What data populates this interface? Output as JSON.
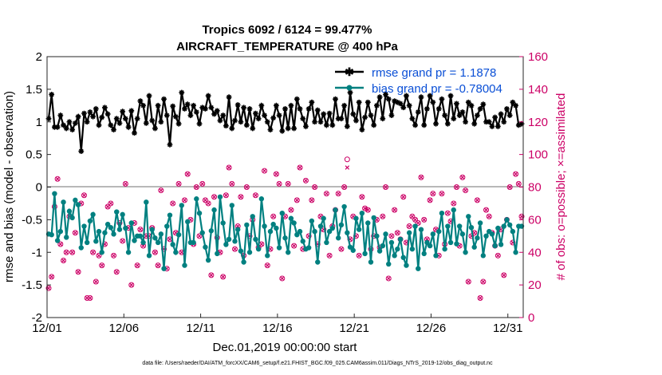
{
  "chart_data": {
    "type": "line",
    "title_line1": "Tropics 6092 / 6124 = 99.477%",
    "title_line2": "AIRCRAFT_TEMPERATURE @ 400 hPa",
    "xlabel": "Dec.01,2019 00:00:00 start",
    "ylabel_left": "rmse and bias (model - observation)",
    "ylabel_right": "# of obs: o=possible; ×=assimilated",
    "ylim_left": [
      -2,
      2
    ],
    "ylim_right": [
      0,
      160
    ],
    "yticks_left": [
      "-2",
      "-1.5",
      "-1",
      "-0.5",
      "0",
      "0.5",
      "1",
      "1.5",
      "2"
    ],
    "yticks_right": [
      "0",
      "20",
      "40",
      "60",
      "80",
      "100",
      "120",
      "140",
      "160"
    ],
    "xticks": [
      {
        "label": "12/01",
        "day": 0
      },
      {
        "label": "12/06",
        "day": 5
      },
      {
        "label": "12/11",
        "day": 10
      },
      {
        "label": "12/16",
        "day": 15
      },
      {
        "label": "12/21",
        "day": 20
      },
      {
        "label": "12/26",
        "day": 25
      },
      {
        "label": "12/31",
        "day": 30
      }
    ],
    "xlim_days": [
      0,
      31
    ],
    "footnote": "data file: /Users/raeder/DAI/ATM_forcXX/CAM6_setup/f.e21.FHIST_BGC.f09_025.CAM6assim.011/Diags_NTrS_2019-12/obs_diag_output.nc",
    "series": [
      {
        "name": "rmse",
        "legend": "rmse grand pr = 1.1878",
        "color": "#000000",
        "marker": "star",
        "values": [
          1.05,
          1.42,
          0.92,
          0.92,
          1.1,
          0.95,
          0.9,
          1.0,
          0.88,
          0.98,
          1.08,
          0.55,
          1.13,
          1.0,
          1.15,
          1.08,
          1.2,
          0.95,
          1.07,
          1.22,
          1.12,
          0.95,
          0.88,
          1.05,
          0.98,
          1.16,
          1.05,
          0.92,
          1.17,
          0.83,
          1.05,
          1.32,
          1.25,
          0.98,
          1.4,
          1.02,
          0.9,
          1.25,
          1.0,
          1.35,
          1.1,
          0.65,
          1.24,
          1.08,
          0.97,
          1.45,
          1.2,
          1.27,
          1.1,
          1.25,
          1.15,
          0.97,
          1.22,
          1.2,
          1.4,
          1.22,
          1.12,
          1.17,
          1.02,
          1.1,
          0.94,
          1.38,
          0.9,
          1.02,
          1.26,
          1.0,
          1.22,
          0.95,
          1.2,
          0.9,
          1.13,
          1.05,
          1.25,
          1.1,
          1.0,
          0.88,
          1.06,
          1.25,
          1.1,
          0.86,
          1.2,
          0.9,
          1.25,
          0.9,
          1.35,
          1.2,
          1.05,
          0.93,
          1.2,
          1.3,
          1.0,
          1.18,
          1.0,
          1.12,
          0.95,
          1.13,
          0.95,
          1.35,
          1.05,
          1.05,
          1.25,
          0.93,
          1.45,
          1.12,
          1.02,
          1.3,
          0.88,
          1.07,
          1.3,
          1.1,
          0.95,
          1.25,
          1.38,
          1.05,
          1.42,
          1.35,
          1.1,
          1.32,
          1.3,
          1.28,
          1.22,
          1.4,
          1.25,
          1.05,
          0.95,
          1.15,
          1.38,
          0.95,
          1.2,
          1.4,
          1.3,
          0.97,
          1.2,
          1.35,
          1.1,
          0.97,
          1.4,
          1.05,
          1.28,
          1.1,
          1.15,
          1.0,
          1.3,
          1.25,
          0.97,
          1.1,
          1.2,
          1.27,
          1.0,
          1.0,
          0.93,
          1.07,
          0.93,
          1.12,
          1.0,
          1.2,
          1.1,
          1.3,
          1.25,
          0.95,
          0.97
        ]
      },
      {
        "name": "bias",
        "legend": "bias grand pr = -0.78004",
        "color": "#008080",
        "marker": "circle",
        "values": [
          -0.72,
          -0.73,
          -0.1,
          -0.82,
          -0.68,
          -0.23,
          -0.77,
          -0.37,
          -0.47,
          -0.2,
          -0.27,
          -0.93,
          -0.6,
          -0.85,
          -0.52,
          -0.42,
          -0.83,
          -0.68,
          -1.0,
          -0.7,
          -0.57,
          -0.62,
          -0.72,
          -0.38,
          -0.65,
          -0.42,
          -0.63,
          -1.0,
          -0.55,
          -0.82,
          -0.75,
          -0.75,
          -0.85,
          -0.23,
          -1.05,
          -0.65,
          -0.78,
          -0.85,
          -0.72,
          -1.25,
          -0.6,
          -0.43,
          -0.88,
          -1.0,
          -0.73,
          -0.28,
          -1.2,
          -0.53,
          -0.85,
          -0.85,
          -0.18,
          -0.4,
          -0.7,
          -0.92,
          -1.12,
          -0.67,
          -0.35,
          -1.02,
          -0.15,
          -0.55,
          -0.88,
          -0.8,
          -0.28,
          -0.83,
          -0.65,
          -0.98,
          -1.15,
          -0.58,
          -1.0,
          -0.45,
          -0.8,
          -0.95,
          -0.18,
          -0.6,
          -1.05,
          -0.68,
          -0.57,
          -0.63,
          -0.93,
          -0.4,
          -0.78,
          -1.0,
          -0.48,
          -0.55,
          -0.73,
          -0.68,
          -0.83,
          -0.95,
          -0.93,
          -0.52,
          -0.68,
          -1.15,
          -0.6,
          -0.48,
          -0.85,
          -0.68,
          -0.63,
          -0.35,
          -0.78,
          -0.58,
          -0.3,
          -0.7,
          -0.92,
          -0.97,
          -0.48,
          -0.65,
          -0.4,
          -1.02,
          -0.55,
          -1.15,
          -0.47,
          -0.75,
          -0.98,
          -0.9,
          -0.72,
          -1.18,
          -0.85,
          -1.05,
          -0.95,
          -0.8,
          -1.08,
          -1.2,
          -0.7,
          -0.95,
          -0.6,
          -1.25,
          -0.65,
          -1.02,
          -0.85,
          -0.9,
          -0.72,
          -1.05,
          -0.68,
          -0.4,
          -0.95,
          -0.6,
          -0.85,
          -0.35,
          -0.87,
          -0.6,
          -0.72,
          -1.0,
          -0.45,
          -0.62,
          -0.92,
          -0.78,
          -0.55,
          -1.05,
          -0.75,
          -0.68,
          -0.72,
          -0.9,
          -0.63,
          -0.88,
          -0.6,
          -0.5,
          -0.58,
          -0.68,
          -1.0,
          -0.6,
          -0.6
        ]
      },
      {
        "name": "obs_possible",
        "marker": "circle-open",
        "color": "#cc0066",
        "values": [
          18,
          25,
          68,
          85,
          45,
          35,
          40,
          62,
          40,
          52,
          28,
          70,
          75,
          12,
          12,
          40,
          22,
          38,
          32,
          45,
          68,
          70,
          38,
          28,
          58,
          47,
          82,
          55,
          20,
          58,
          32,
          54,
          44,
          50,
          50,
          55,
          40,
          32,
          78,
          42,
          30,
          48,
          70,
          52,
          82,
          40,
          72,
          88,
          60,
          45,
          80,
          50,
          82,
          72,
          70,
          26,
          74,
          49,
          40,
          25,
          75,
          92,
          82,
          42,
          56,
          74,
          38,
          80,
          50,
          60,
          75,
          43,
          45,
          90,
          32,
          42,
          62,
          88,
          82,
          24,
          62,
          82,
          66,
          44,
          72,
          92,
          42,
          84,
          50,
          72,
          80,
          45,
          62,
          54,
          76,
          38,
          56,
          66,
          76,
          42,
          80,
          97,
          48,
          62,
          50,
          38,
          74,
          67,
          66,
          42,
          50,
          60,
          43,
          62,
          80,
          24,
          50,
          66,
          52,
          48,
          74,
          46,
          56,
          62,
          60,
          58,
          86,
          60,
          48,
          72,
          76,
          54,
          38,
          76,
          45,
          64,
          59,
          70,
          80,
          44,
          86,
          78,
          22,
          50,
          52,
          72,
          12,
          22,
          66,
          62,
          52,
          44,
          38,
          54,
          26,
          60,
          80,
          46,
          88,
          82,
          62
        ]
      },
      {
        "name": "obs_assimilated",
        "marker": "x",
        "color": "#cc0066",
        "values": [
          18,
          25,
          68,
          85,
          45,
          35,
          40,
          62,
          40,
          52,
          28,
          70,
          75,
          12,
          12,
          40,
          22,
          38,
          32,
          45,
          68,
          70,
          38,
          28,
          58,
          47,
          82,
          55,
          20,
          58,
          32,
          54,
          44,
          50,
          50,
          55,
          40,
          32,
          78,
          42,
          30,
          48,
          70,
          52,
          82,
          40,
          72,
          88,
          60,
          45,
          80,
          50,
          82,
          72,
          70,
          26,
          74,
          49,
          40,
          25,
          75,
          92,
          82,
          42,
          56,
          74,
          38,
          80,
          50,
          60,
          75,
          43,
          45,
          90,
          32,
          42,
          62,
          88,
          82,
          24,
          62,
          82,
          66,
          44,
          72,
          92,
          42,
          84,
          50,
          72,
          80,
          45,
          62,
          54,
          76,
          38,
          56,
          66,
          76,
          42,
          80,
          92,
          48,
          62,
          50,
          38,
          74,
          67,
          66,
          42,
          50,
          60,
          43,
          62,
          80,
          24,
          50,
          66,
          52,
          48,
          74,
          46,
          56,
          62,
          60,
          58,
          86,
          60,
          48,
          72,
          76,
          54,
          38,
          76,
          45,
          64,
          59,
          70,
          80,
          44,
          86,
          78,
          22,
          50,
          52,
          72,
          12,
          22,
          66,
          62,
          52,
          44,
          38,
          54,
          26,
          60,
          80,
          46,
          88,
          82,
          62
        ]
      }
    ]
  }
}
